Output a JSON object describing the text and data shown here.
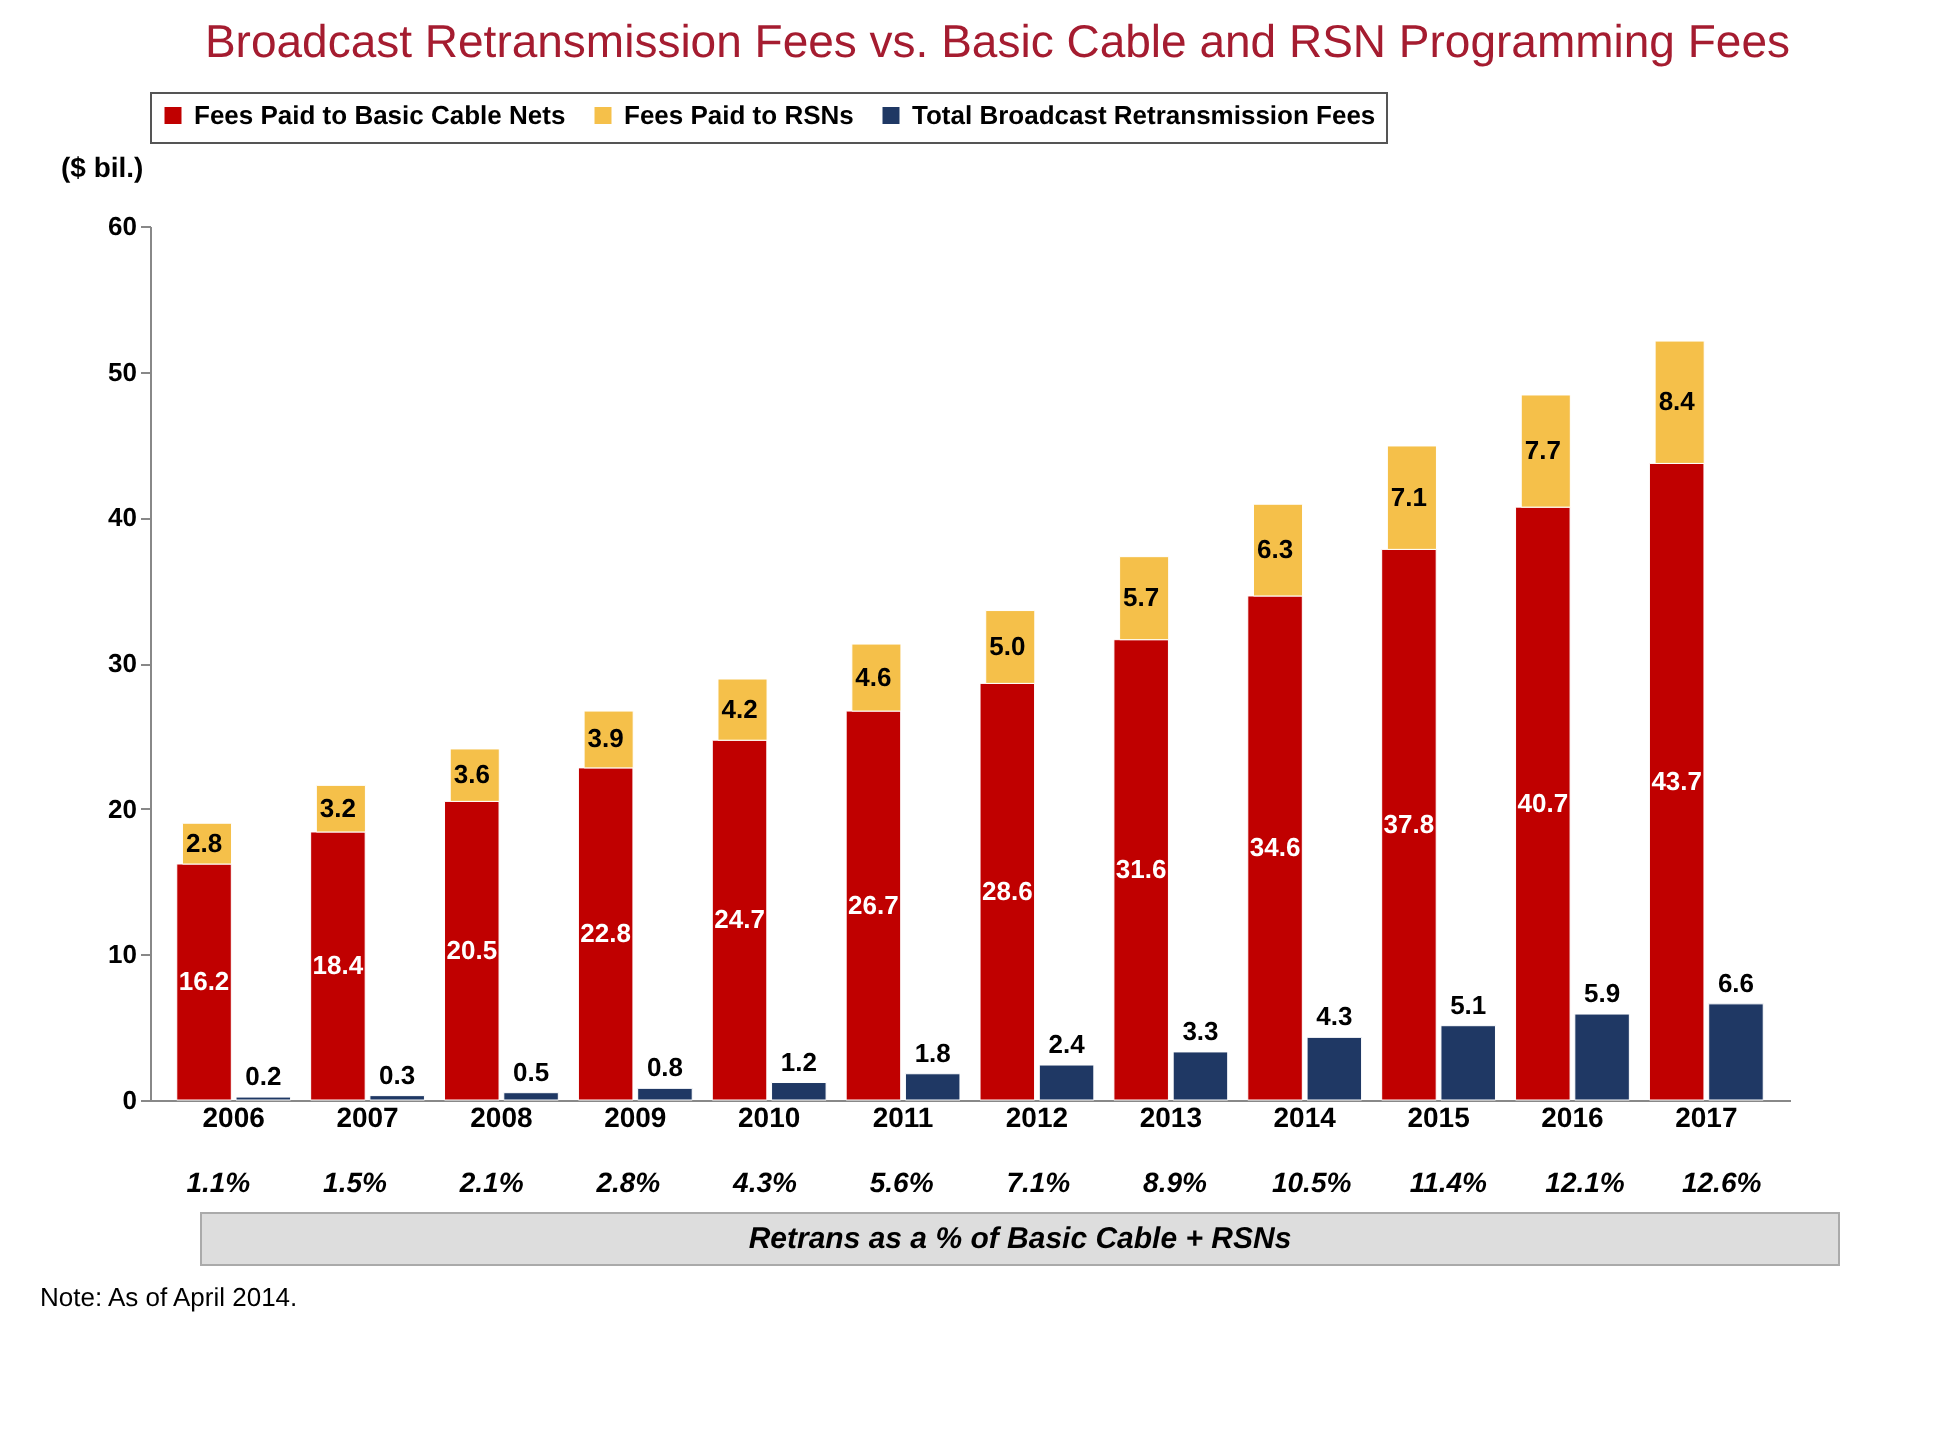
{
  "chart_data": {
    "type": "bar",
    "title": "Broadcast Retransmission Fees vs. Basic Cable and RSN Programming Fees",
    "ylabel": "($ bil.)",
    "categories": [
      "2006",
      "2007",
      "2008",
      "2009",
      "2010",
      "2011",
      "2012",
      "2013",
      "2014",
      "2015",
      "2016",
      "2017"
    ],
    "series": [
      {
        "name": "Fees Paid to Basic Cable Nets",
        "color": "#c00000",
        "values": [
          16.2,
          18.4,
          20.5,
          22.8,
          24.7,
          26.7,
          28.6,
          31.6,
          34.6,
          37.8,
          40.7,
          43.7
        ]
      },
      {
        "name": "Fees Paid to RSNs",
        "color": "#f5c04a",
        "values": [
          2.8,
          3.2,
          3.6,
          3.9,
          4.2,
          4.6,
          5.0,
          5.7,
          6.3,
          7.1,
          7.7,
          8.4
        ],
        "value_labels": [
          "2.8",
          "3.2",
          "3.6",
          "3.9",
          "4.2",
          "4.6",
          "5.0",
          "5.7",
          "6.3",
          "7.1",
          "7.7",
          "8.4"
        ],
        "base": [
          16.2,
          18.4,
          20.5,
          22.8,
          24.7,
          26.7,
          28.6,
          31.6,
          34.6,
          37.8,
          40.7,
          43.7
        ]
      },
      {
        "name": "Total Broadcast Retransmission Fees",
        "color": "#1f3864",
        "values": [
          0.2,
          0.3,
          0.5,
          0.8,
          1.2,
          1.8,
          2.4,
          3.3,
          4.3,
          5.1,
          5.9,
          6.6
        ]
      }
    ],
    "data_labels": true,
    "ylim": [
      0,
      60
    ],
    "yticks": [
      0,
      10,
      20,
      30,
      40,
      50,
      60
    ],
    "grid": false,
    "legend": "top",
    "annotations": [
      "1.1%",
      "1.5%",
      "2.1%",
      "2.8%",
      "4.3%",
      "5.6%",
      "7.1%",
      "8.9%",
      "10.5%",
      "11.4%",
      "12.1%",
      "12.6%",
      "Retrans as a % of Basic Cable + RSNs",
      "Note: As of April 2014."
    ]
  }
}
